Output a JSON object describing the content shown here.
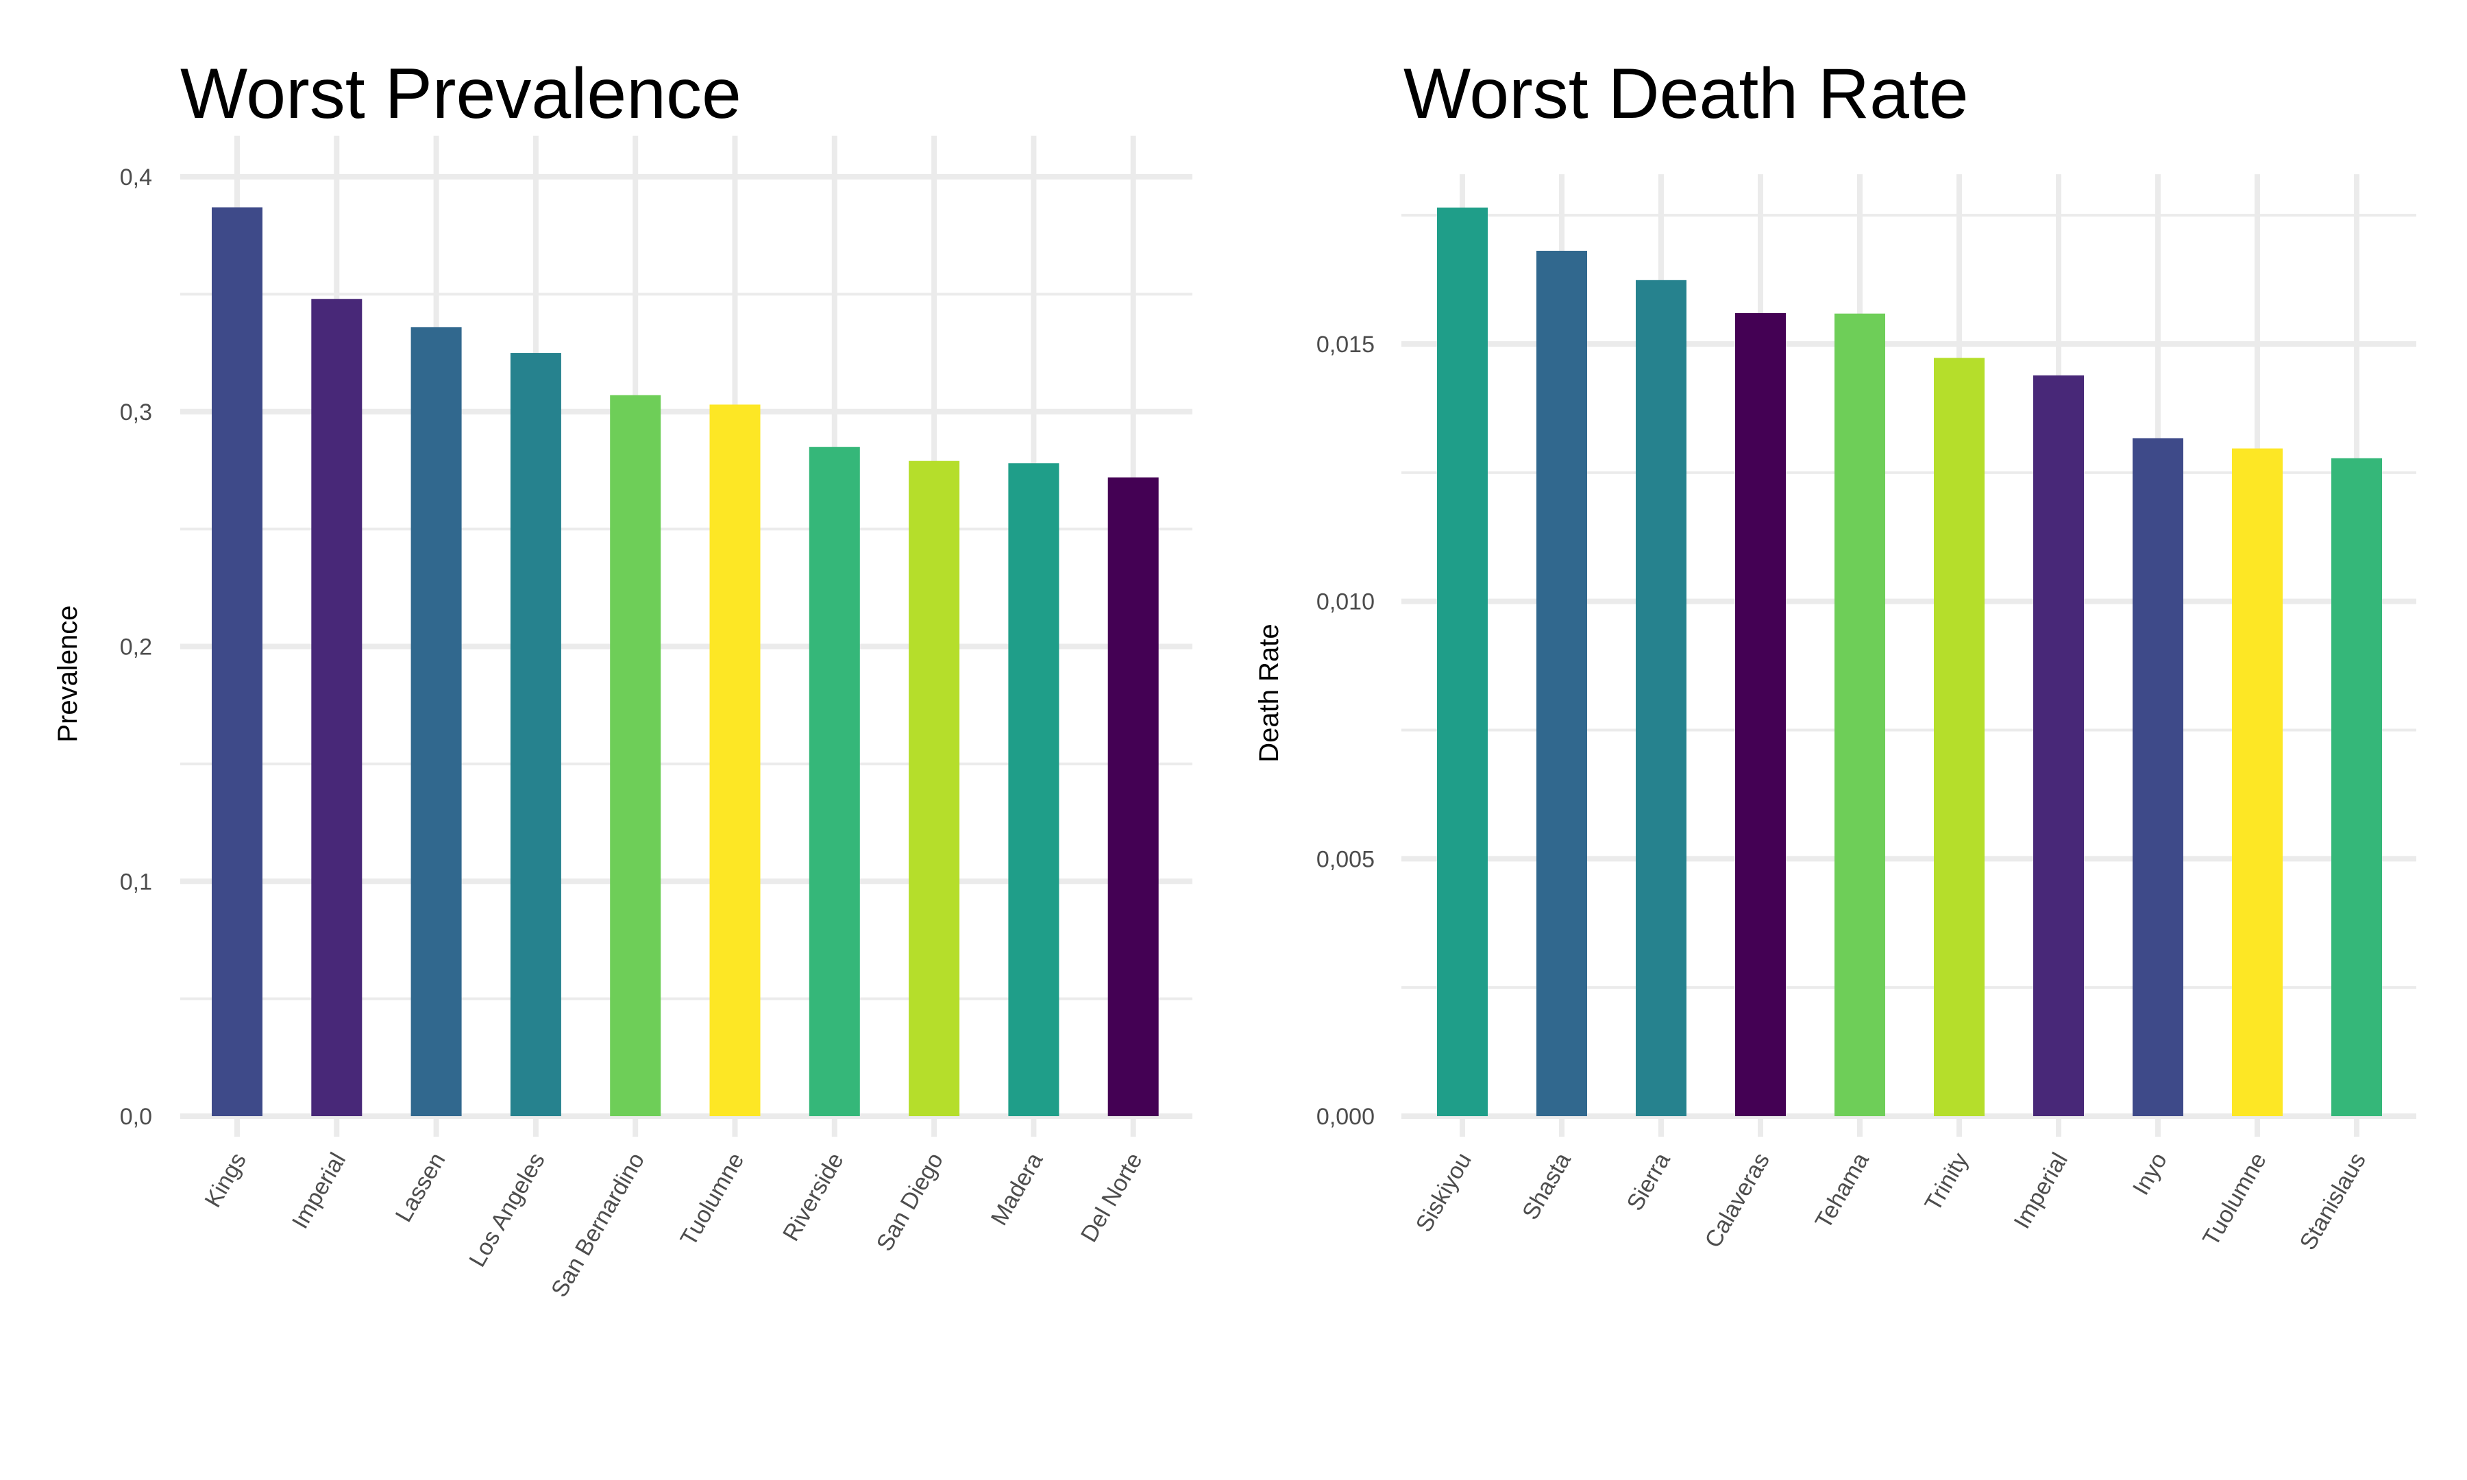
{
  "chart_data": [
    {
      "type": "bar",
      "title": "Worst Prevalence",
      "xlabel": "",
      "ylabel": "Prevalence",
      "ylim": [
        0,
        0.4
      ],
      "yticks": [
        0,
        0.1,
        0.2,
        0.3,
        0.4
      ],
      "ytick_labels": [
        "0,0",
        "0,1",
        "0,2",
        "0,3",
        "0,4"
      ],
      "grid": true,
      "legend": "none",
      "categories": [
        "Kings",
        "Imperial",
        "Lassen",
        "Los Angeles",
        "San Bernardino",
        "Tuolumne",
        "Riverside",
        "San Diego",
        "Madera",
        "Del Norte"
      ],
      "values": [
        0.387,
        0.348,
        0.336,
        0.325,
        0.307,
        0.303,
        0.285,
        0.279,
        0.278,
        0.272
      ],
      "colors": [
        "#3e4a89",
        "#482878",
        "#31688e",
        "#26828e",
        "#6ece58",
        "#fde725",
        "#35b779",
        "#b5de2b",
        "#1f9e89",
        "#440154"
      ]
    },
    {
      "type": "bar",
      "title": "Worst Death Rate",
      "xlabel": "",
      "ylabel": "Death Rate",
      "ylim": [
        0,
        0.0175
      ],
      "yticks": [
        0,
        0.005,
        0.01,
        0.015
      ],
      "ytick_labels": [
        "0,000",
        "0,005",
        "0,010",
        "0,015"
      ],
      "grid": true,
      "legend": "none",
      "categories": [
        "Siskiyou",
        "Shasta",
        "Sierra",
        "Calaveras",
        "Tehama",
        "Trinity",
        "Imperial",
        "Inyo",
        "Tuolumne",
        "Stanislaus"
      ],
      "values": [
        0.01765,
        0.01681,
        0.01624,
        0.0156,
        0.01559,
        0.01473,
        0.01439,
        0.01317,
        0.01297,
        0.01278
      ],
      "colors": [
        "#1f9e89",
        "#31688e",
        "#26828e",
        "#440154",
        "#6ece58",
        "#b5de2b",
        "#482878",
        "#3e4a89",
        "#fde725",
        "#35b779"
      ]
    }
  ]
}
